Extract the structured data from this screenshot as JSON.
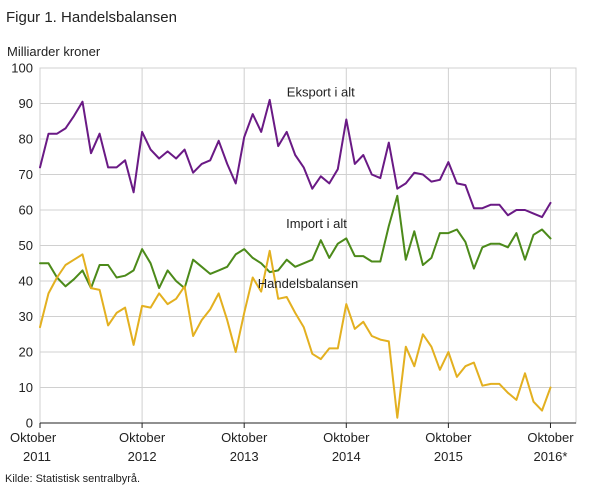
{
  "chart_data": {
    "type": "line",
    "title": "Figur 1. Handelsbalansen",
    "ylabel": "Milliarder  kroner",
    "source": "Kilde: Statistisk sentralbyrå.",
    "ylim": [
      0,
      100
    ],
    "yticks": [
      0,
      10,
      20,
      30,
      40,
      50,
      60,
      70,
      80,
      90,
      100
    ],
    "grid": true,
    "xlim": [
      0,
      63
    ],
    "x_ticks": [
      {
        "x": 0,
        "line1": "Oktober",
        "line2": "2011"
      },
      {
        "x": 12,
        "line1": "Oktober",
        "line2": "2012"
      },
      {
        "x": 24,
        "line1": "Oktober",
        "line2": "2013"
      },
      {
        "x": 36,
        "line1": "Oktober",
        "line2": "2014"
      },
      {
        "x": 48,
        "line1": "Oktober",
        "line2": "2015"
      },
      {
        "x": 60,
        "line1": "Oktober",
        "line2": "2016*"
      }
    ],
    "series": [
      {
        "name": "Eksport i alt",
        "color": "#6a1a85",
        "values": [
          72,
          81.5,
          81.5,
          83,
          86.5,
          90.5,
          76,
          81.5,
          72,
          72,
          74,
          65,
          82,
          77,
          74.5,
          76.5,
          74.5,
          77,
          70.5,
          73,
          74,
          79.5,
          73,
          67.5,
          80.5,
          87,
          82,
          91,
          78,
          82,
          75.5,
          72,
          66,
          69.5,
          67.5,
          71.5,
          85.5,
          73,
          75.5,
          70,
          69,
          79,
          66,
          67.5,
          70.5,
          70,
          68,
          68.5,
          73.5,
          67.5,
          67,
          60.5,
          60.5,
          61.5,
          61.5,
          58.5,
          60,
          60,
          59,
          58,
          62
        ]
      },
      {
        "name": "Import i alt",
        "color": "#4c8a1a",
        "values": [
          45,
          45,
          41,
          38.5,
          40.5,
          43,
          38,
          44.5,
          44.5,
          41,
          41.5,
          43,
          49,
          45,
          38,
          43,
          40,
          38,
          46,
          44,
          42,
          43,
          44,
          47.5,
          49,
          46.5,
          45,
          42.5,
          43,
          46,
          44,
          45,
          46,
          51.5,
          46.5,
          50.5,
          52,
          47,
          47,
          45.5,
          45.5,
          55.5,
          64,
          46,
          54,
          44.5,
          46.5,
          53.5,
          53.5,
          54.5,
          51,
          43.5,
          49.5,
          50.5,
          50.5,
          49.5,
          53.5,
          46,
          53,
          54.5,
          52
        ]
      },
      {
        "name": "Handelsbalansen",
        "color": "#e3b020",
        "values": [
          27,
          36.5,
          41,
          44.5,
          46,
          47.5,
          38,
          37.5,
          27.5,
          31,
          32.5,
          22,
          33,
          32.5,
          36.5,
          33.5,
          35,
          38.5,
          24.5,
          29,
          32,
          36.5,
          29,
          20,
          31,
          41,
          37,
          48.5,
          35,
          35.5,
          31,
          27,
          19.5,
          18,
          21,
          21,
          33.5,
          26.5,
          28.5,
          24.5,
          23.5,
          23,
          1.5,
          21.5,
          16,
          25,
          21.5,
          15,
          20,
          13,
          16,
          17,
          10.5,
          11,
          11,
          8.5,
          6.5,
          14,
          6,
          3.5,
          10
        ]
      }
    ],
    "annotations": [
      {
        "text": "Eksport i alt",
        "x": 33,
        "y": 92
      },
      {
        "text": "Import i alt",
        "x": 32.5,
        "y": 55
      },
      {
        "text": "Handelsbalansen",
        "x": 31.5,
        "y": 38
      }
    ]
  }
}
